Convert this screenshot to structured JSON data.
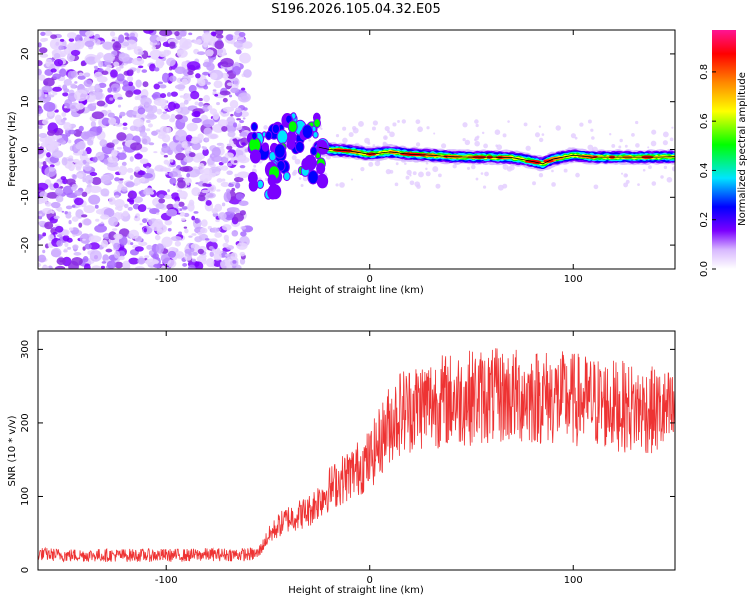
{
  "chart_data": [
    {
      "type": "heatmap",
      "title": "S196.2026.105.04.32.E05",
      "xlabel": "Height of straight line (km)",
      "ylabel": "Frequency (Hz)",
      "xlim": [
        -163,
        150
      ],
      "ylim": [
        -25,
        25
      ],
      "xticks": [
        -100,
        0,
        100
      ],
      "yticks": [
        -20,
        -10,
        0,
        10,
        20
      ],
      "grid": false,
      "colorbar": {
        "label": "Normalized spectral amplitude",
        "range": [
          0,
          0.97
        ],
        "ticks": [
          0.0,
          0.2,
          0.4,
          0.6,
          0.8
        ],
        "colors": [
          "#ffffff",
          "#7b00ff",
          "#0000ff",
          "#00e5ff",
          "#00ff00",
          "#ffff00",
          "#ff8800",
          "#ff0000",
          "#ff1493"
        ]
      },
      "description_of_features": {
        "noise_region_x": [
          -163,
          -60
        ],
        "transition_region_x": [
          -60,
          -25
        ],
        "signal_centerline": {
          "x": [
            -60,
            -50,
            -40,
            -30,
            -20,
            -10,
            0,
            10,
            20,
            30,
            40,
            50,
            60,
            70,
            80,
            85,
            90,
            100,
            110,
            120,
            130,
            140,
            150
          ],
          "frequency_hz": [
            -1,
            -3,
            0,
            1,
            0,
            -0.3,
            -1,
            -0.5,
            -1,
            -1.2,
            -1.5,
            -1.6,
            -1.6,
            -1.7,
            -2.5,
            -3.0,
            -2.0,
            -1.2,
            -1.6,
            -1.6,
            -1.6,
            -1.6,
            -1.5
          ]
        }
      }
    },
    {
      "type": "line",
      "title": "",
      "xlabel": "Height of straight line (km)",
      "ylabel": "SNR (10 * v/v)",
      "xlim": [
        -163,
        150
      ],
      "ylim": [
        0,
        325
      ],
      "xticks": [
        -100,
        0,
        100
      ],
      "yticks": [
        0,
        100,
        200,
        300
      ],
      "grid": false,
      "series": [
        {
          "name": "SNR",
          "color": "#ee3333",
          "x": [
            -163,
            -150,
            -140,
            -130,
            -120,
            -110,
            -100,
            -90,
            -80,
            -70,
            -60,
            -55,
            -50,
            -45,
            -40,
            -35,
            -30,
            -25,
            -20,
            -15,
            -10,
            -5,
            0,
            5,
            10,
            15,
            20,
            25,
            30,
            35,
            40,
            45,
            50,
            55,
            60,
            65,
            70,
            75,
            80,
            85,
            90,
            95,
            100,
            105,
            110,
            115,
            120,
            125,
            130,
            135,
            140,
            145,
            150
          ],
          "values": [
            22,
            20,
            20,
            20,
            20,
            20,
            20,
            20,
            21,
            21,
            21,
            22,
            45,
            60,
            70,
            75,
            80,
            95,
            110,
            120,
            130,
            140,
            150,
            175,
            200,
            215,
            220,
            225,
            228,
            230,
            232,
            233,
            235,
            236,
            236,
            236,
            236,
            236,
            236,
            236,
            234,
            233,
            232,
            230,
            228,
            226,
            224,
            222,
            220,
            218,
            216,
            214,
            212
          ]
        }
      ]
    }
  ]
}
